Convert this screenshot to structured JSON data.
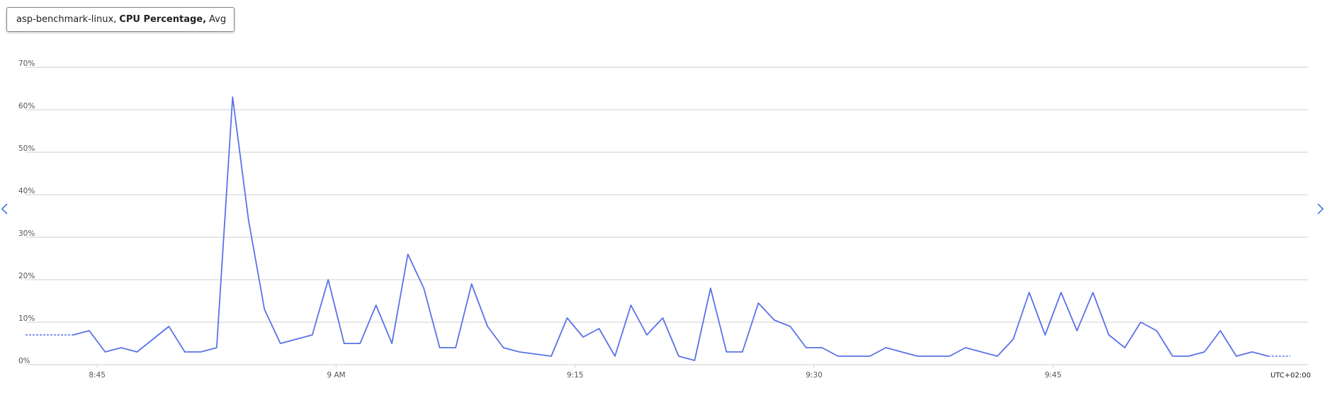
{
  "chart_data": {
    "type": "line",
    "legend": {
      "resource": "asp-benchmark-linux,",
      "metric": "CPU Percentage,",
      "aggregation": "Avg"
    },
    "timezone": "UTC+02:00",
    "x": [
      523.5,
      524.5,
      525.5,
      526.5,
      527.5,
      528.5,
      529.5,
      530.5,
      531.5,
      532.5,
      533.5,
      534.5,
      535.5,
      536.5,
      537.5,
      538.5,
      539.5,
      540.5,
      541.5,
      542.5,
      543.5,
      544.5,
      545.5,
      546.5,
      547.5,
      548.5,
      549.5,
      550.5,
      551.5,
      552.5,
      553.5,
      554.5,
      555.5,
      556.5,
      557.5,
      558.5,
      559.5,
      560.5,
      561.5,
      562.5,
      563.5,
      564.5,
      565.5,
      566.5,
      567.5,
      568.5,
      569.5,
      570.5,
      571.5,
      572.5,
      573.5,
      574.5,
      575.5,
      576.5,
      577.5,
      578.5,
      579.5,
      580.5,
      581.5,
      582.5,
      583.5,
      584.5,
      585.5,
      586.5,
      587.5,
      588.5,
      589.5,
      590.5,
      591.5,
      592.5,
      593.5,
      594.5,
      595.5,
      596.5,
      597.5,
      598.5
    ],
    "series": [
      {
        "name": "CPU Percentage",
        "color": "#5a72e8",
        "values": [
          7,
          8,
          3,
          4,
          3,
          6,
          9,
          3,
          3,
          4,
          63,
          34,
          13,
          5,
          6,
          7,
          20,
          5,
          5,
          14,
          5,
          26,
          18,
          4,
          4,
          19,
          9,
          4,
          3,
          2.5,
          2,
          11,
          6.5,
          8.5,
          2,
          14,
          7,
          11,
          2,
          1,
          18,
          3,
          3,
          14.5,
          10.5,
          9,
          4,
          4,
          2,
          2,
          2,
          4,
          3,
          2,
          2,
          2,
          4,
          3,
          2,
          6,
          17,
          7,
          17,
          8,
          17,
          7,
          4,
          10,
          8,
          2,
          2,
          3,
          8,
          2,
          3,
          2
        ]
      }
    ],
    "xlim": [
      520.5,
      601
    ],
    "xticks": [
      {
        "value": 525,
        "label": "8:45"
      },
      {
        "value": 540,
        "label": "9 AM"
      },
      {
        "value": 555,
        "label": "9:15"
      },
      {
        "value": 570,
        "label": "9:30"
      },
      {
        "value": 585,
        "label": "9:45"
      }
    ],
    "ylim": [
      0,
      70
    ],
    "yticks": [
      {
        "value": 0,
        "label": "0%"
      },
      {
        "value": 10,
        "label": "10%"
      },
      {
        "value": 20,
        "label": "20%"
      },
      {
        "value": 30,
        "label": "30%"
      },
      {
        "value": 40,
        "label": "40%"
      },
      {
        "value": 50,
        "label": "50%"
      },
      {
        "value": 60,
        "label": "60%"
      },
      {
        "value": 70,
        "label": "70%"
      }
    ],
    "grid": true
  }
}
